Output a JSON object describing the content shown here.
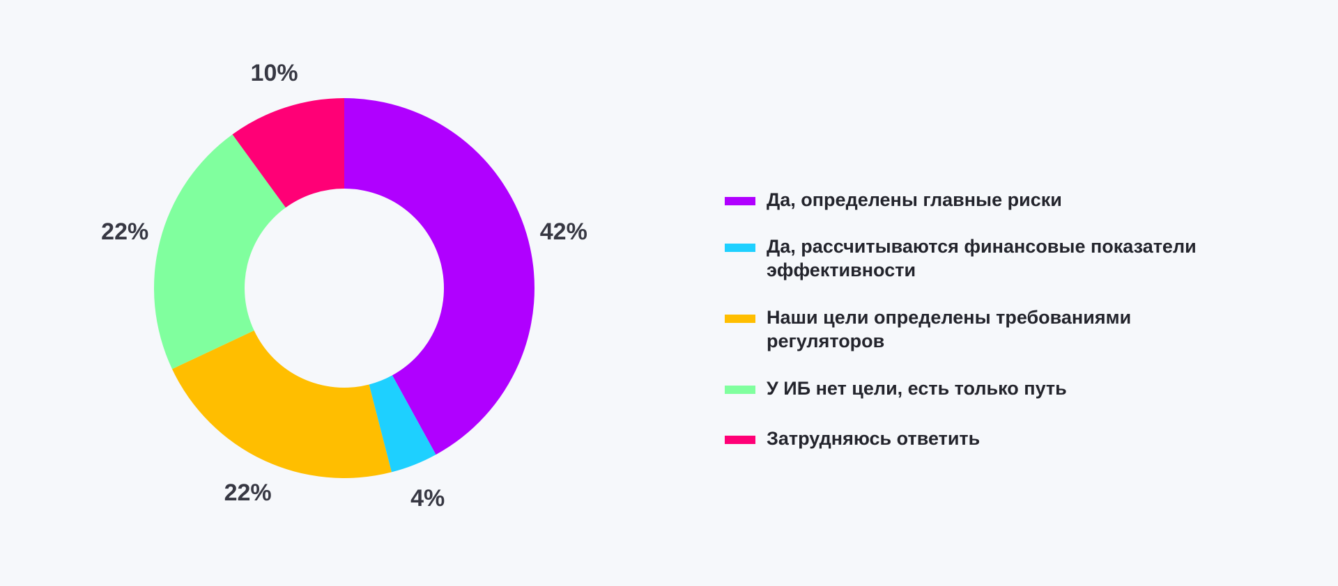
{
  "chart_data": {
    "type": "pie",
    "variant": "donut",
    "title": "",
    "slices": [
      {
        "label": "Да, определены главные риски",
        "value": 42,
        "value_label": "42%",
        "color": "#b000ff"
      },
      {
        "label": "Да, рассчитываются финансовые показатели эффективности",
        "value": 4,
        "value_label": "4%",
        "color": "#1ed0ff"
      },
      {
        "label": "Наши цели определены требованиями регуляторов",
        "value": 22,
        "value_label": "22%",
        "color": "#ffbe00"
      },
      {
        "label": "У ИБ нет цели, есть только путь",
        "value": 22,
        "value_label": "22%",
        "color": "#80ff9e"
      },
      {
        "label": "Затрудняюсь ответить",
        "value": 10,
        "value_label": "10%",
        "color": "#ff0076"
      }
    ],
    "start": "12 o'clock",
    "direction": "clockwise",
    "legend_position": "right"
  }
}
